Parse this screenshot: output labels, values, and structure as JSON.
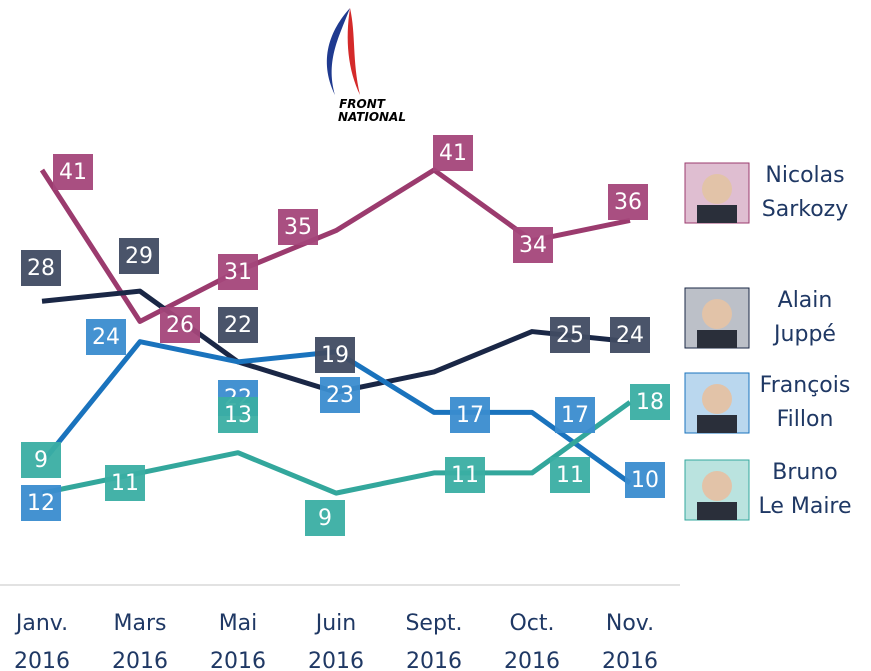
{
  "chart_data": {
    "type": "line",
    "logo_text": "FRONT NATIONAL",
    "categories": [
      "Janv. 2016",
      "Mars 2016",
      "Mai 2016",
      "Juin 2016",
      "Sept. 2016",
      "Oct. 2016",
      "Nov. 2016"
    ],
    "ylim": [
      0,
      41
    ],
    "series": [
      {
        "name": "Nicolas Sarkozy",
        "color": "#9b3b6e",
        "label_color": "#a4467a",
        "values": [
          41,
          26,
          31,
          35,
          41,
          34,
          36
        ],
        "value_labels": [
          41,
          26,
          31,
          35,
          41,
          34,
          36
        ]
      },
      {
        "name": "Alain Juppé",
        "color": "#1a2746",
        "label_color": "#404b62",
        "values": [
          28,
          29,
          22,
          19,
          21,
          25,
          24
        ],
        "value_labels": [
          28,
          29,
          22,
          19,
          null,
          25,
          24
        ]
      },
      {
        "name": "François Fillon",
        "color": "#1a73bd",
        "label_color": "#3a8ccf",
        "values": [
          12,
          24,
          22,
          23,
          17,
          17,
          10
        ],
        "value_labels": [
          12,
          24,
          22,
          23,
          17,
          17,
          10
        ]
      },
      {
        "name": "Bruno Le Maire",
        "color": "#33a79c",
        "label_color": "#3aaea3",
        "values": [
          9,
          11,
          13,
          9,
          11,
          11,
          18
        ],
        "value_labels": [
          9,
          11,
          13,
          9,
          11,
          11,
          18
        ]
      }
    ]
  }
}
